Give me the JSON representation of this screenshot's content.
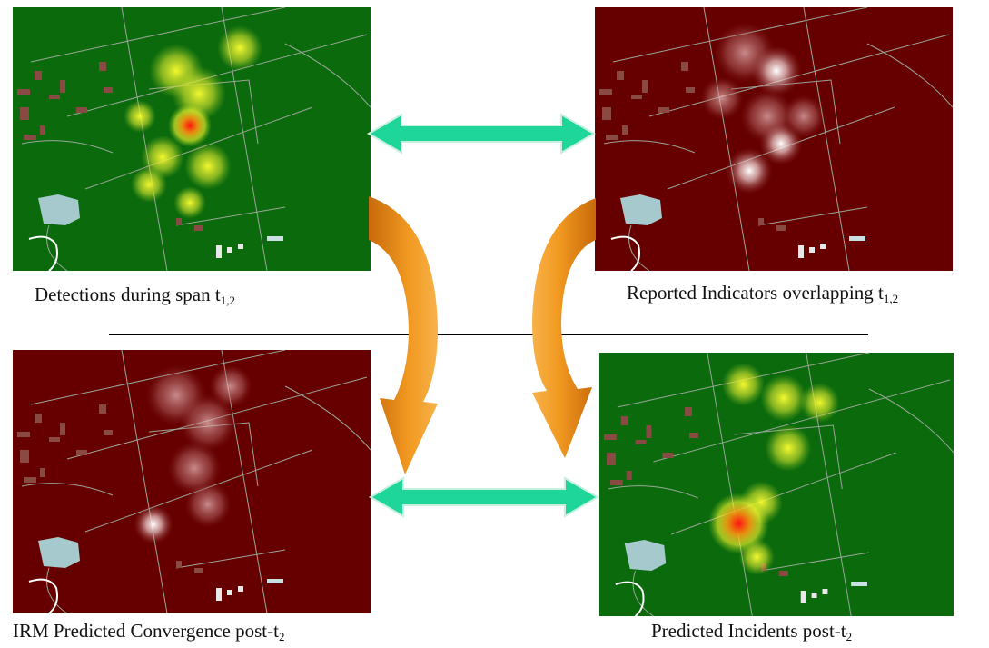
{
  "colors": {
    "green_background": "#0a6a0c",
    "red_background": "#660000",
    "connector_arrow": "#1fd69a",
    "flow_arrow": "#f0901a"
  },
  "panels": {
    "top_left": {
      "background": "green",
      "caption_main": "Detections during span t",
      "caption_sub": "1,2"
    },
    "top_right": {
      "background": "red",
      "caption_main": "Reported Indicators overlapping t",
      "caption_sub": "1,2"
    },
    "bottom_left": {
      "background": "red",
      "caption_main": "IRM Predicted Convergence post-t",
      "caption_sub": "2"
    },
    "bottom_right": {
      "background": "green",
      "caption_main": "Predicted Incidents post-t",
      "caption_sub": "2"
    }
  }
}
